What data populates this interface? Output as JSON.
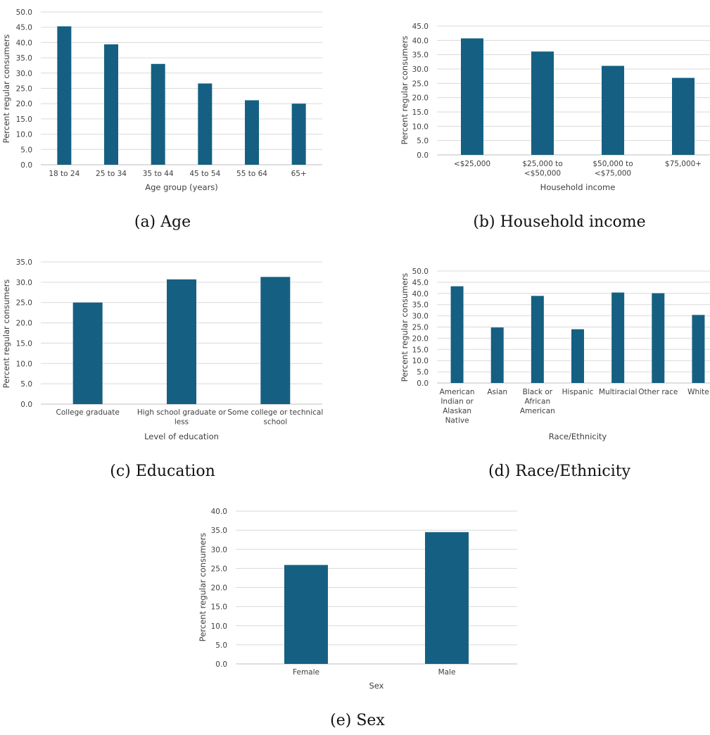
{
  "figure": {
    "bar_color": "#156082",
    "grid_color": "#d9d9d9",
    "text_color": "#404040"
  },
  "chart_data": [
    {
      "id": "age",
      "type": "bar",
      "caption": "(a) Age",
      "title": "",
      "xlabel": "Age group (years)",
      "ylabel": "Percent regular consumers",
      "ylim": [
        0,
        50
      ],
      "ystep": 5,
      "grid": true,
      "legend": "none",
      "categories": [
        [
          "18 to 24"
        ],
        [
          "25 to 34"
        ],
        [
          "35 to 44"
        ],
        [
          "45 to 54"
        ],
        [
          "55 to 64"
        ],
        [
          "65+"
        ]
      ],
      "values": [
        45.3,
        39.4,
        33.0,
        26.6,
        21.1,
        20.0
      ]
    },
    {
      "id": "income",
      "type": "bar",
      "caption": "(b) Household income",
      "title": "",
      "xlabel": "Household income",
      "ylabel": "Percent regular consumers",
      "ylim": [
        0,
        45
      ],
      "ystep": 5,
      "grid": true,
      "legend": "none",
      "categories": [
        [
          "<$25,000"
        ],
        [
          "$25,000 to",
          "<$50,000"
        ],
        [
          "$50,000 to",
          "<$75,000"
        ],
        [
          "$75,000+"
        ]
      ],
      "values": [
        40.7,
        36.1,
        31.1,
        26.9
      ]
    },
    {
      "id": "education",
      "type": "bar",
      "caption": "(c) Education",
      "title": "",
      "xlabel": "Level of education",
      "ylabel": "Percent regular consumers",
      "ylim": [
        0,
        35
      ],
      "ystep": 5,
      "grid": true,
      "legend": "none",
      "categories": [
        [
          "College graduate"
        ],
        [
          "High school graduate or",
          "less"
        ],
        [
          "Some college or technical",
          "school"
        ]
      ],
      "values": [
        25.0,
        30.7,
        31.3
      ]
    },
    {
      "id": "race",
      "type": "bar",
      "caption": "(d) Race/Ethnicity",
      "title": "",
      "xlabel": "Race/Ethnicity",
      "ylabel": "Percent regular consumers",
      "ylim": [
        0,
        50
      ],
      "ystep": 5,
      "grid": true,
      "legend": "none",
      "categories": [
        [
          "American",
          "Indian or",
          "Alaskan",
          "Native"
        ],
        [
          "Asian"
        ],
        [
          "Black or",
          "African",
          "American"
        ],
        [
          "Hispanic"
        ],
        [
          "Multiracial"
        ],
        [
          "Other race"
        ],
        [
          "White"
        ]
      ],
      "values": [
        43.2,
        24.8,
        38.9,
        24.0,
        40.4,
        40.1,
        30.4
      ]
    },
    {
      "id": "sex",
      "type": "bar",
      "caption": "(e) Sex",
      "title": "",
      "xlabel": "Sex",
      "ylabel": "Percent regular consumers",
      "ylim": [
        0,
        40
      ],
      "ystep": 5,
      "grid": true,
      "legend": "none",
      "categories": [
        [
          "Female"
        ],
        [
          "Male"
        ]
      ],
      "values": [
        25.9,
        34.5
      ]
    }
  ]
}
